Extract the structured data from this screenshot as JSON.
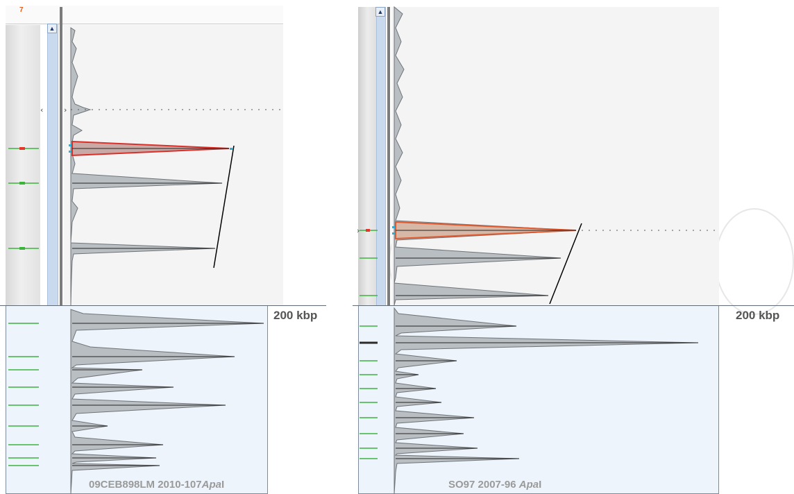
{
  "left": {
    "header_number": "7",
    "scale_label": "200 kbp",
    "sample_id": "09CEB898LM  2010-107",
    "enzyme_italic": "Apa",
    "enzyme_suffix": "I"
  },
  "right": {
    "scale_label": "200 kbp",
    "sample_id": "SO97 2007-96 ",
    "enzyme_italic": "Apa",
    "enzyme_suffix": "I"
  },
  "colors": {
    "highlight_peak": "#d9302a",
    "band_green": "#3cb43c",
    "band_red": "#e23a2a",
    "trace_fill": "#b9bec2",
    "trace_stroke": "#6e7377",
    "scrollbar": "#c9d9ee",
    "bottom_bg": "#eef4fb"
  },
  "icons": [
    "scroll-up-icon",
    "scroll-down-icon",
    "left-chevron-icon",
    "right-chevron-icon"
  ]
}
